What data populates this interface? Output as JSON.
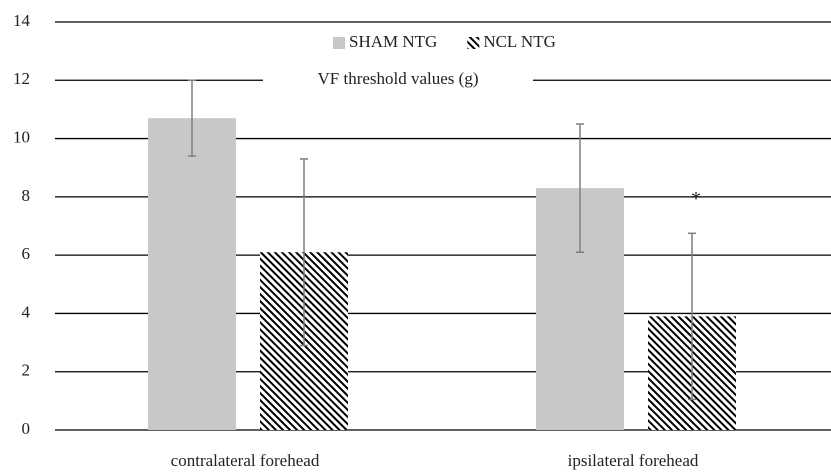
{
  "chart_data": {
    "type": "bar",
    "title": "VF threshold values (g)",
    "categories": [
      "contralateral forehead",
      "ipsilateral forehead"
    ],
    "series": [
      {
        "name": "SHAM NTG",
        "color": "#c8c8c8",
        "pattern": "solid",
        "values": [
          10.7,
          8.3
        ],
        "errors": [
          1.3,
          2.2
        ]
      },
      {
        "name": "NCL NTG",
        "color": "#000000",
        "pattern": "hatch",
        "values": [
          6.1,
          3.9
        ],
        "errors": [
          3.2,
          2.85
        ]
      }
    ],
    "ylim": [
      0,
      14
    ],
    "yticks": [
      0,
      2,
      4,
      6,
      8,
      10,
      12,
      14
    ],
    "grid": true,
    "legend": "top",
    "annotations": [
      {
        "text": "*",
        "series": 1,
        "category": 1
      }
    ]
  }
}
